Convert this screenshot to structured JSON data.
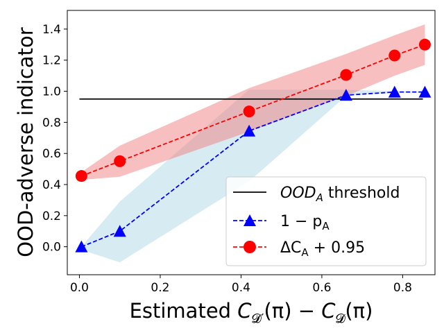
{
  "chart_data": {
    "type": "line",
    "title": "",
    "xlabel": "Estimated C_D'(π) − C_D(π)",
    "xlabel_parts": {
      "prefix": "Estimated ",
      "c1": "C",
      "s1": "𝓓′",
      "mid": "(π) − ",
      "c2": "C",
      "s2": "𝓓",
      "suffix": "(π)"
    },
    "ylabel": "OOD-adverse indicator",
    "xlim": [
      -0.03,
      0.88
    ],
    "ylim": [
      -0.18,
      1.52
    ],
    "xticks": [
      0.0,
      0.2,
      0.4,
      0.6,
      0.8
    ],
    "xtick_labels": [
      "0.0",
      "0.2",
      "0.4",
      "0.6",
      "0.8"
    ],
    "yticks": [
      0.0,
      0.2,
      0.4,
      0.6,
      0.8,
      1.0,
      1.2,
      1.4
    ],
    "ytick_labels": [
      "0.0",
      "0.2",
      "0.4",
      "0.6",
      "0.8",
      "1.0",
      "1.2",
      "1.4"
    ],
    "grid": false,
    "legend_position": "bottom-right",
    "threshold": {
      "name": "OOD_A threshold",
      "y": 0.95,
      "x_range": [
        0.0,
        0.85
      ],
      "color": "#000000"
    },
    "series": [
      {
        "name": "1 − p_A",
        "marker": "triangle",
        "color": "#0000ff",
        "band_color": "#add8e6",
        "x": [
          0.005,
          0.1,
          0.42,
          0.66,
          0.78,
          0.855
        ],
        "y": [
          0.0,
          0.1,
          0.745,
          0.975,
          0.995,
          0.995
        ],
        "band_low": [
          -0.02,
          -0.1,
          0.42,
          0.97,
          0.99,
          0.99
        ],
        "band_high": [
          0.0,
          0.29,
          1.01,
          1.01,
          1.0,
          1.0
        ]
      },
      {
        "name": "ΔC_A + 0.95",
        "marker": "circle",
        "color": "#ff0000",
        "band_color": "#f08080",
        "x": [
          0.005,
          0.1,
          0.42,
          0.66,
          0.78,
          0.855
        ],
        "y": [
          0.455,
          0.55,
          0.87,
          1.105,
          1.23,
          1.3
        ],
        "band_low": [
          0.43,
          0.45,
          0.74,
          0.97,
          1.1,
          1.17
        ],
        "band_high": [
          0.48,
          0.65,
          1.02,
          1.24,
          1.36,
          1.43
        ]
      }
    ],
    "legend": [
      {
        "kind": "line",
        "main": "OOD",
        "sub": "A",
        "tail": " threshold"
      },
      {
        "kind": "triangle",
        "main": "1 − p",
        "sub": "A",
        "tail": ""
      },
      {
        "kind": "circle",
        "main": "ΔC",
        "sub": "A",
        "tail": " + 0.95"
      }
    ]
  }
}
